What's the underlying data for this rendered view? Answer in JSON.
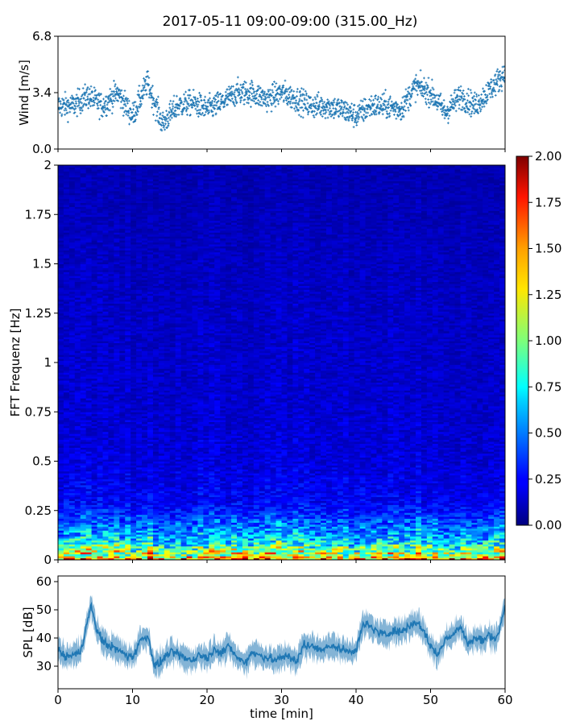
{
  "title": "2017-05-11 09:00-09:00 (315.00_Hz)",
  "colors": {
    "series": "#1f77b4",
    "cmap": "jet"
  },
  "chart_data": [
    {
      "type": "scatter",
      "ylabel": "Wind [m/s]",
      "xlim": [
        0,
        60
      ],
      "ylim": [
        0.0,
        6.8
      ],
      "yticks": [
        0.0,
        3.4,
        6.8
      ],
      "ytick_labels": [
        "0.0",
        "3.4",
        "6.8"
      ],
      "series": [
        {
          "x": [
            0,
            2,
            4,
            6,
            8,
            10,
            12,
            14,
            16,
            18,
            20,
            22,
            24,
            26,
            28,
            30,
            32,
            34,
            36,
            38,
            40,
            42,
            44,
            46,
            48,
            50,
            52,
            54,
            56,
            58,
            60
          ],
          "y": [
            2.6,
            2.6,
            3.2,
            2.6,
            3.4,
            2.0,
            4.0,
            1.5,
            2.6,
            2.8,
            2.4,
            2.8,
            3.4,
            3.4,
            3.0,
            3.4,
            3.0,
            2.6,
            2.6,
            2.4,
            2.0,
            2.6,
            2.6,
            2.4,
            3.8,
            3.4,
            2.2,
            3.2,
            2.6,
            3.6,
            4.6
          ]
        }
      ]
    },
    {
      "type": "heatmap",
      "ylabel": "FFT Frequenz [Hz]",
      "xlim": [
        0,
        60
      ],
      "ylim": [
        0,
        2
      ],
      "yticks": [
        0,
        0.25,
        0.5,
        0.75,
        1,
        1.25,
        1.5,
        1.75,
        2
      ],
      "ytick_labels": [
        "0",
        "0.25",
        "0.5",
        "0.75",
        "1",
        "1.25",
        "1.5",
        "1.75",
        "2"
      ],
      "colorbar": {
        "range": [
          0.0,
          2.0
        ],
        "ticks": [
          0.0,
          0.25,
          0.5,
          0.75,
          1.0,
          1.25,
          1.5,
          1.75,
          2.0
        ],
        "tick_labels": [
          "0.00",
          "0.25",
          "0.50",
          "0.75",
          "1.00",
          "1.25",
          "1.50",
          "1.75",
          "2.00"
        ]
      },
      "frequency_profile": {
        "freq": [
          0,
          0.02,
          0.05,
          0.1,
          0.15,
          0.25,
          0.5,
          0.75,
          1.0,
          1.5,
          2.0
        ],
        "level": [
          1.6,
          1.0,
          0.7,
          0.45,
          0.35,
          0.25,
          0.18,
          0.16,
          0.15,
          0.13,
          0.1
        ]
      }
    },
    {
      "type": "line",
      "xlabel": "time [min]",
      "ylabel": "SPL [dB]",
      "xlim": [
        0,
        60
      ],
      "ylim": [
        22,
        62
      ],
      "xticks": [
        0,
        10,
        20,
        30,
        40,
        50,
        60
      ],
      "xtick_labels": [
        "0",
        "10",
        "20",
        "30",
        "40",
        "50",
        "60"
      ],
      "yticks": [
        30,
        40,
        50,
        60
      ],
      "ytick_labels": [
        "30",
        "40",
        "50",
        "60"
      ],
      "series": [
        {
          "x": [
            0,
            1,
            2,
            3,
            4,
            4.5,
            5,
            6,
            7,
            8,
            9,
            10,
            11,
            12,
            13,
            14,
            15,
            16,
            17,
            18,
            19,
            20,
            21,
            22,
            23,
            24,
            25,
            26,
            27,
            28,
            29,
            30,
            31,
            32,
            33,
            34,
            35,
            36,
            37,
            38,
            39,
            40,
            41,
            42,
            43,
            44,
            45,
            46,
            47,
            48,
            49,
            50,
            51,
            52,
            53,
            54,
            55,
            56,
            57,
            58,
            59,
            60
          ],
          "y": [
            36,
            33,
            34,
            35,
            46,
            52,
            44,
            39,
            37,
            36,
            34,
            33,
            39,
            41,
            30,
            32,
            35,
            34,
            33,
            32,
            34,
            33,
            36,
            35,
            37,
            33,
            31,
            35,
            34,
            33,
            32,
            33,
            34,
            31,
            38,
            37,
            36,
            37,
            37,
            36,
            35,
            36,
            45,
            44,
            42,
            41,
            43,
            42,
            44,
            46,
            43,
            37,
            34,
            40,
            41,
            44,
            38,
            40,
            39,
            41,
            40,
            52
          ]
        }
      ]
    }
  ]
}
